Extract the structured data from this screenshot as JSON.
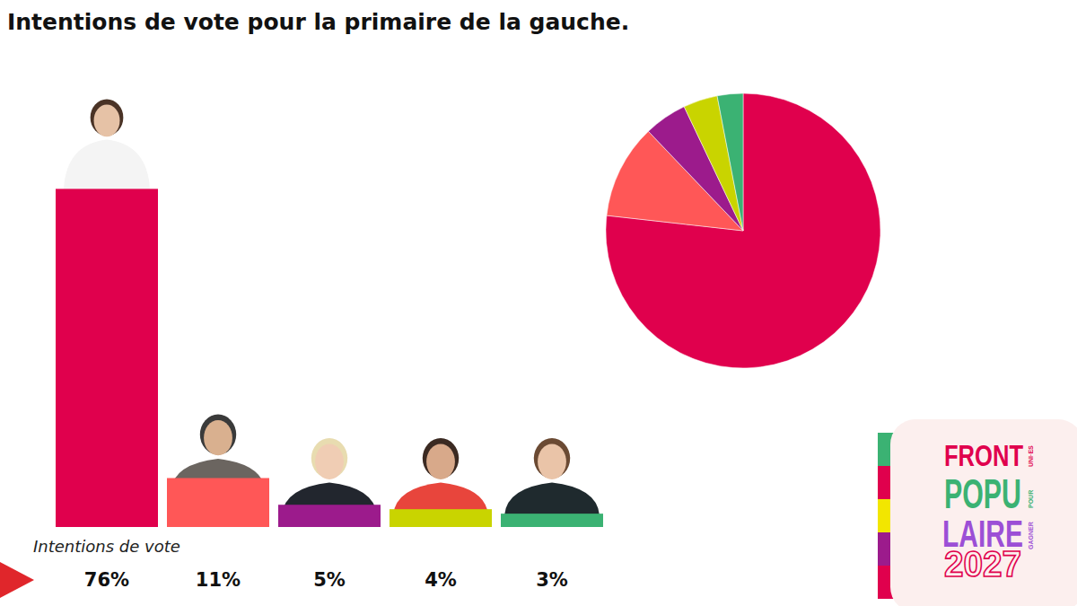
{
  "chart_data": [
    {
      "type": "bar",
      "title": "Intentions de vote pour la primaire de la gauche.",
      "xlabel": "Intentions de vote",
      "categories": [
        null,
        null,
        null,
        null,
        null
      ],
      "values": [
        76,
        11,
        5,
        4,
        3
      ],
      "value_labels": [
        "76%",
        "11%",
        "5%",
        "4%",
        "3%"
      ],
      "colors": [
        "#e0004d",
        "#ff5757",
        "#9c1b8c",
        "#c9d400",
        "#3bb273"
      ],
      "ylim": [
        0,
        90
      ],
      "data_labels": true,
      "tick_labels": false,
      "grid": false
    },
    {
      "type": "pie",
      "values": [
        76,
        11,
        5,
        4,
        3
      ],
      "colors": [
        "#e0004d",
        "#ff5757",
        "#9c1b8c",
        "#c9d400",
        "#3bb273"
      ]
    }
  ],
  "logo": {
    "line1": "FRONT",
    "small1": "UNI·ES",
    "line2": "POPU",
    "small2": "POUR",
    "line3": "LAIRE",
    "small3": "GAGNER",
    "line4": "2027"
  }
}
